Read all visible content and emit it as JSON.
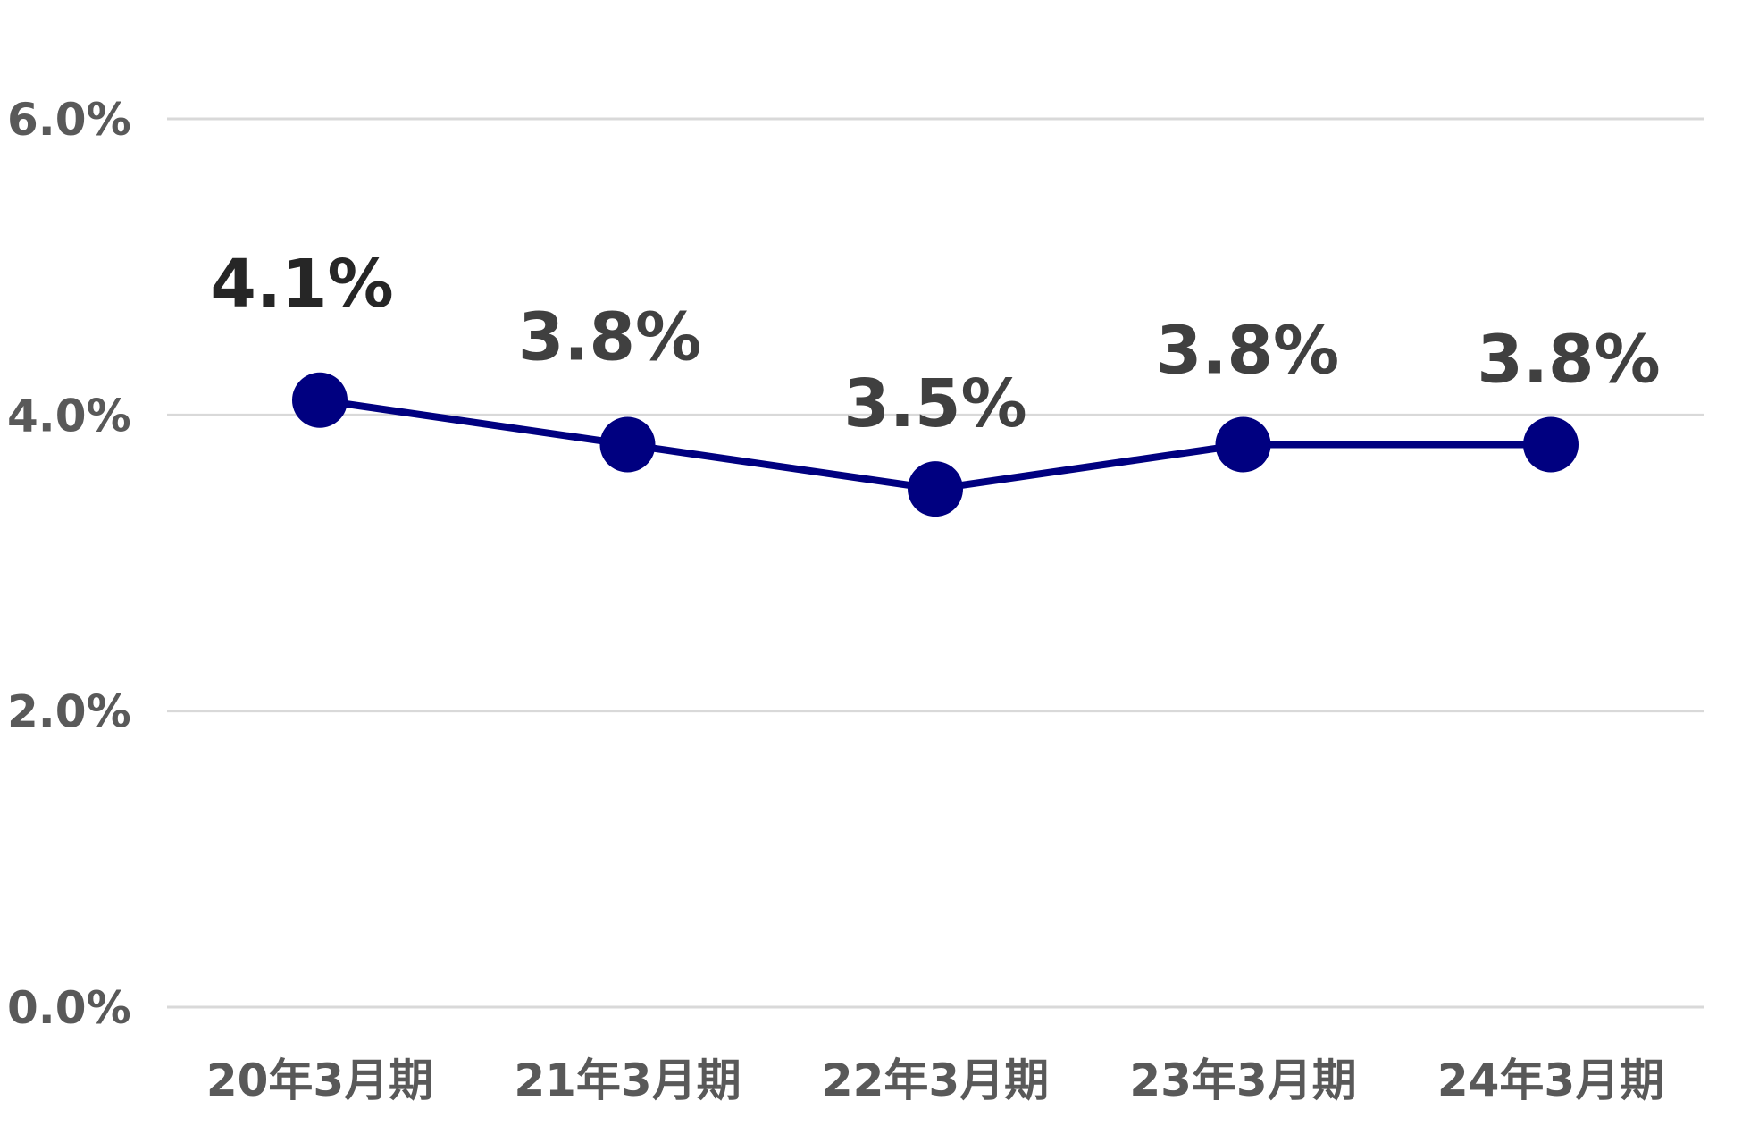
{
  "chart_data": {
    "type": "line",
    "categories": [
      "20年3月期",
      "21年3月期",
      "22年3月期",
      "23年3月期",
      "24年3月期"
    ],
    "series": [
      {
        "values": [
          4.1,
          3.8,
          3.5,
          3.8,
          3.8
        ],
        "data_labels": [
          "4.1%",
          "3.8%",
          "3.5%",
          "3.8%",
          "3.8%"
        ],
        "color": "#000080"
      }
    ],
    "yticks": [
      "0.0%",
      "2.0%",
      "4.0%",
      "6.0%"
    ],
    "ytick_values": [
      0,
      2,
      4,
      6
    ],
    "ylim": [
      0,
      6
    ],
    "grid": true,
    "legend": "none"
  }
}
